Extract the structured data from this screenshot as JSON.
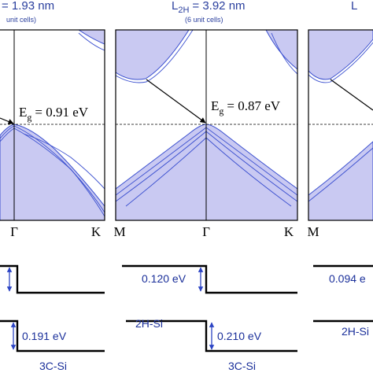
{
  "panels": [
    {
      "title": {
        "main": "= 1.93 nm",
        "note": "unit cells)"
      },
      "gap": {
        "symbol": "E",
        "subscript": "g",
        "value": "= 0.91 eV"
      },
      "kpoints": [
        "Γ",
        "K"
      ],
      "offsets": {
        "lower": "0.191 eV",
        "bottom_material": "3C-Si"
      }
    },
    {
      "title": {
        "symbol": "L",
        "subscript": "2H",
        "main": "= 3.92 nm",
        "note": "(6 unit cells)"
      },
      "gap": {
        "symbol": "E",
        "subscript": "g",
        "value": "= 0.87 eV"
      },
      "kpoints": [
        "M",
        "Γ",
        "K"
      ],
      "offsets": {
        "upper": "0.120 eV",
        "lower": "0.210 eV",
        "top_material": "2H-Si",
        "bottom_material": "3C-Si"
      }
    },
    {
      "title": {
        "symbol": "L"
      },
      "kpoints": [
        "M"
      ],
      "offsets": {
        "upper": "0.094 e",
        "top_material": "2H-Si"
      }
    }
  ]
}
